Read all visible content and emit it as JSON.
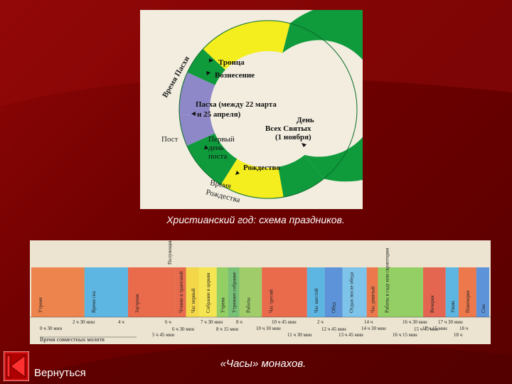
{
  "wheel": {
    "labels": {
      "trinity": "Троица",
      "ascension": "Вознесение",
      "easter": "Пасха (между 22 марта",
      "easter2": "и 25 апреля)",
      "all_saints1": "День",
      "all_saints2": "Всех Святых",
      "all_saints3": "(1 ноября)",
      "lent": "Пост",
      "first1": "Первый",
      "first2": "день",
      "first3": "поста",
      "christmas": "Рождество",
      "easter_time": "Время Пасхи",
      "christmas_time1": "Время",
      "christmas_time2": "Рождества"
    },
    "colors": {
      "green": "#0f9a3c",
      "yellow": "#f4ee1e",
      "violet": "#8f88c8"
    }
  },
  "caption_wheel": "Христианский год: схема праздников.",
  "hours": {
    "top_label": "Полунощницы подъем",
    "bands": [
      {
        "label": "Утреня",
        "color": "#e96a26"
      },
      {
        "label": "Время сна",
        "color": "#3aa6dc"
      },
      {
        "label": "Заутреня",
        "color": "#e64a25"
      },
      {
        "label": "Чтение в трапезной",
        "color": "#e34b27"
      },
      {
        "label": "Час первый",
        "color": "#f1cf22"
      },
      {
        "label": "Собрание в церкви",
        "color": "#f5e02c"
      },
      {
        "label": "Утреня",
        "color": "#7cc542"
      },
      {
        "label": "Утреннее собрание",
        "color": "#5cb45a"
      },
      {
        "label": "Работы",
        "color": "#8bc34a"
      },
      {
        "label": "Час третий",
        "color": "#e64a25"
      },
      {
        "label": "Час шестой",
        "color": "#3aa6dc"
      },
      {
        "label": "Обед",
        "color": "#3a7cd0"
      },
      {
        "label": "Отдых после обеда",
        "color": "#62b8e6"
      },
      {
        "label": "Час девятый",
        "color": "#e85b25"
      },
      {
        "label": "Работы в саду или скриптории",
        "color": "#7cc542"
      },
      {
        "label": "Вечерня",
        "color": "#e0452a"
      },
      {
        "label": "Ужин",
        "color": "#3aa6dc"
      },
      {
        "label": "Повечерие",
        "color": "#e85b25"
      },
      {
        "label": "Сон",
        "color": "#3a7cd0"
      }
    ],
    "times_row1": [
      "2 ч 30 мин",
      "4 ч",
      "6 ч",
      "7 ч 30 мин",
      "8 ч",
      "10 ч 45 мин",
      "2 ч",
      "14 ч",
      "16 ч 30 мин",
      "17 ч 30 мин"
    ],
    "times_row2": [
      "6 ч 30 мин",
      "8 ч 15 мин",
      "12 ч 45 мин",
      "15 ч 45 мин"
    ],
    "times_row3": [
      "0 ч 30 мин",
      "10 ч 30 мин",
      "14 ч 30 мин",
      "17 ч 15 мин",
      "18 ч"
    ],
    "times_row4": [
      "5 ч 45 мин",
      "11 ч 30 мин",
      "13 ч 45 мин",
      "16 ч 15 мин",
      "18 ч"
    ],
    "bottom_label": "Время совместных молитв"
  },
  "caption_hours": "«Часы» монахов.",
  "nav": {
    "back_label": "Вернуться"
  }
}
